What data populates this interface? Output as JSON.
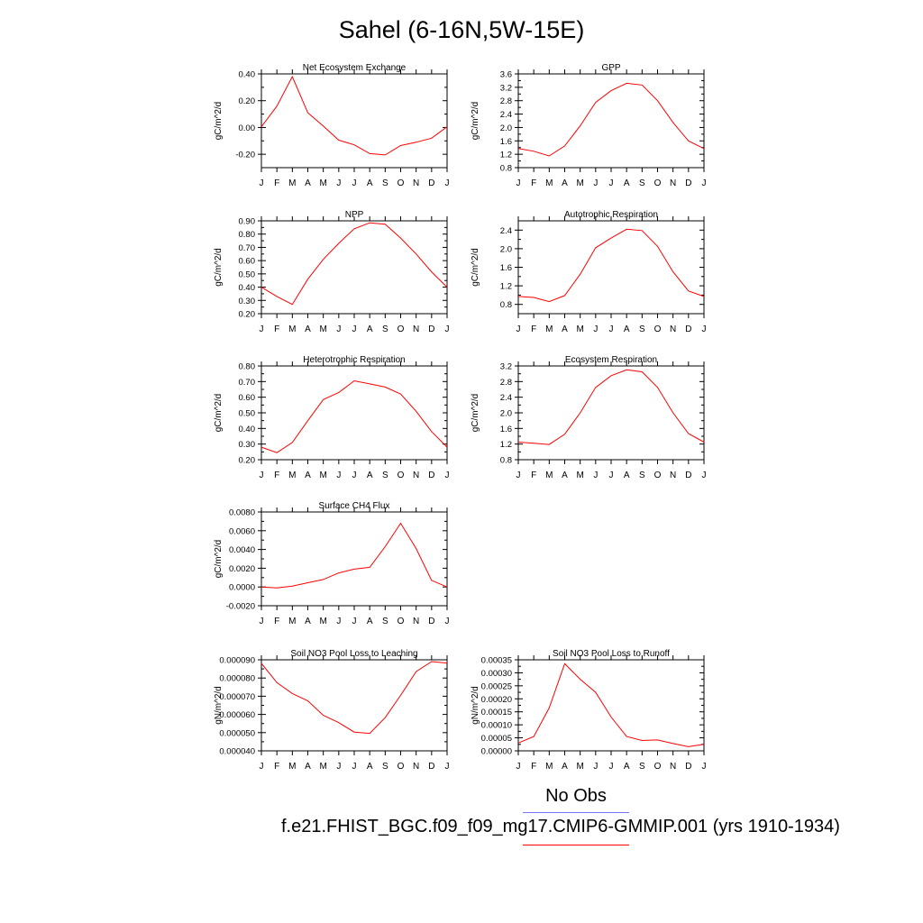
{
  "title": "Sahel (6-16N,5W-15E)",
  "legend": {
    "obs_label": "No Obs",
    "obs_color": "#7777ff",
    "model_label": "f.e21.FHIST_BGC.f09_f09_mg17.CMIP6-GMMIP.001 (yrs 1910-1934)",
    "model_color": "#ff0000"
  },
  "chart_data": [
    {
      "type": "line",
      "title": "Net Ecosystem Exchange",
      "ylabel": "gC/m^2/d",
      "x": [
        "J",
        "F",
        "M",
        "A",
        "M",
        "J",
        "J",
        "A",
        "S",
        "O",
        "N",
        "D",
        "J"
      ],
      "ylim": [
        -0.3,
        0.4
      ],
      "yticks": [
        "0.40",
        "0.20",
        "0.00",
        "-0.20"
      ],
      "ytick_values": [
        0.4,
        0.2,
        0.0,
        -0.2
      ],
      "series": [
        {
          "values": [
            0.005,
            0.16,
            0.38,
            0.11,
            0.01,
            -0.095,
            -0.13,
            -0.195,
            -0.205,
            -0.135,
            -0.11,
            -0.08,
            0.005
          ]
        }
      ]
    },
    {
      "type": "line",
      "title": "GPP",
      "ylabel": "gC/m^2/d",
      "x": [
        "J",
        "F",
        "M",
        "A",
        "M",
        "J",
        "J",
        "A",
        "S",
        "O",
        "N",
        "D",
        "J"
      ],
      "ylim": [
        0.8,
        3.6
      ],
      "yticks": [
        "3.6",
        "3.2",
        "2.8",
        "2.4",
        "2.0",
        "1.6",
        "1.2",
        "0.8"
      ],
      "ytick_values": [
        3.6,
        3.2,
        2.8,
        2.4,
        2.0,
        1.6,
        1.2,
        0.8
      ],
      "series": [
        {
          "values": [
            1.37,
            1.29,
            1.15,
            1.45,
            2.05,
            2.75,
            3.1,
            3.32,
            3.27,
            2.8,
            2.15,
            1.6,
            1.37
          ]
        }
      ]
    },
    {
      "type": "line",
      "title": "NPP",
      "ylabel": "gC/m^2/d",
      "x": [
        "J",
        "F",
        "M",
        "A",
        "M",
        "J",
        "J",
        "A",
        "S",
        "O",
        "N",
        "D",
        "J"
      ],
      "ylim": [
        0.2,
        0.9
      ],
      "yticks": [
        "0.90",
        "0.80",
        "0.70",
        "0.60",
        "0.50",
        "0.40",
        "0.30",
        "0.20"
      ],
      "ytick_values": [
        0.9,
        0.8,
        0.7,
        0.6,
        0.5,
        0.4,
        0.3,
        0.2
      ],
      "series": [
        {
          "values": [
            0.4,
            0.33,
            0.27,
            0.46,
            0.61,
            0.73,
            0.84,
            0.885,
            0.875,
            0.77,
            0.65,
            0.515,
            0.4
          ]
        }
      ]
    },
    {
      "type": "line",
      "title": "Autotrophic Respiration",
      "ylabel": "gC/m^2/d",
      "x": [
        "J",
        "F",
        "M",
        "A",
        "M",
        "J",
        "J",
        "A",
        "S",
        "O",
        "N",
        "D",
        "J"
      ],
      "ylim": [
        0.6,
        2.6
      ],
      "yticks": [
        "2.4",
        "2.0",
        "1.6",
        "1.2",
        "0.8"
      ],
      "ytick_values": [
        2.4,
        2.0,
        1.6,
        1.2,
        0.8
      ],
      "series": [
        {
          "values": [
            0.97,
            0.95,
            0.86,
            0.99,
            1.45,
            2.02,
            2.23,
            2.42,
            2.39,
            2.05,
            1.5,
            1.09,
            0.97
          ]
        }
      ]
    },
    {
      "type": "line",
      "title": "Heterotrophic Respiration",
      "ylabel": "gC/m^2/d",
      "x": [
        "J",
        "F",
        "M",
        "A",
        "M",
        "J",
        "J",
        "A",
        "S",
        "O",
        "N",
        "D",
        "J"
      ],
      "ylim": [
        0.2,
        0.8
      ],
      "yticks": [
        "0.80",
        "0.70",
        "0.60",
        "0.50",
        "0.40",
        "0.30",
        "0.20"
      ],
      "ytick_values": [
        0.8,
        0.7,
        0.6,
        0.5,
        0.4,
        0.3,
        0.2
      ],
      "series": [
        {
          "values": [
            0.28,
            0.245,
            0.31,
            0.45,
            0.585,
            0.63,
            0.705,
            0.685,
            0.665,
            0.62,
            0.51,
            0.38,
            0.28
          ]
        }
      ]
    },
    {
      "type": "line",
      "title": "Ecosystem Respiration",
      "ylabel": "gC/m^2/d",
      "x": [
        "J",
        "F",
        "M",
        "A",
        "M",
        "J",
        "J",
        "A",
        "S",
        "O",
        "N",
        "D",
        "J"
      ],
      "ylim": [
        0.8,
        3.2
      ],
      "yticks": [
        "3.2",
        "2.8",
        "2.4",
        "2.0",
        "1.6",
        "1.2",
        "0.8"
      ],
      "ytick_values": [
        3.2,
        2.8,
        2.4,
        2.0,
        1.6,
        1.2,
        0.8
      ],
      "series": [
        {
          "values": [
            1.25,
            1.22,
            1.19,
            1.45,
            2.0,
            2.65,
            2.95,
            3.1,
            3.05,
            2.65,
            2.0,
            1.47,
            1.25
          ]
        }
      ]
    },
    {
      "type": "line",
      "title": "Surface CH4 Flux",
      "ylabel": "gC/m^2/d",
      "x": [
        "J",
        "F",
        "M",
        "A",
        "M",
        "J",
        "J",
        "A",
        "S",
        "O",
        "N",
        "D",
        "J"
      ],
      "ylim": [
        -0.002,
        0.008
      ],
      "yticks": [
        "0.0080",
        "0.0060",
        "0.0040",
        "0.0020",
        "0.0000",
        "-0.0020"
      ],
      "ytick_values": [
        0.008,
        0.006,
        0.004,
        0.002,
        0.0,
        -0.002
      ],
      "series": [
        {
          "values": [
            0.0,
            -0.0001,
            0.0001,
            0.00045,
            0.0008,
            0.0015,
            0.0019,
            0.0021,
            0.0043,
            0.0068,
            0.0041,
            0.0007,
            0.0
          ]
        }
      ]
    },
    {
      "type": "line",
      "title": "Soil NO3 Pool Loss to Leaching",
      "ylabel": "gN/m^2/d",
      "x": [
        "J",
        "F",
        "M",
        "A",
        "M",
        "J",
        "J",
        "A",
        "S",
        "O",
        "N",
        "D",
        "J"
      ],
      "ylim": [
        4e-05,
        9e-05
      ],
      "yticks": [
        "0.000090",
        "0.000080",
        "0.000070",
        "0.000060",
        "0.000050",
        "0.000040"
      ],
      "ytick_values": [
        9e-05,
        8e-05,
        7e-05,
        6e-05,
        5e-05,
        4e-05
      ],
      "series": [
        {
          "values": [
            8.8e-05,
            7.75e-05,
            7.15e-05,
            6.75e-05,
            5.95e-05,
            5.55e-05,
            5.03e-05,
            4.96e-05,
            5.82e-05,
            7.05e-05,
            8.35e-05,
            8.9e-05,
            8.82e-05
          ]
        }
      ]
    },
    {
      "type": "line",
      "title": "Soil NO3 Pool Loss to Runoff",
      "ylabel": "gN/m^2/d",
      "x": [
        "J",
        "F",
        "M",
        "A",
        "M",
        "J",
        "J",
        "A",
        "S",
        "O",
        "N",
        "D",
        "J"
      ],
      "ylim": [
        0.0,
        0.00035
      ],
      "yticks": [
        "0.00035",
        "0.00030",
        "0.00025",
        "0.00020",
        "0.00015",
        "0.00010",
        "0.00005",
        "0.00000"
      ],
      "ytick_values": [
        0.00035,
        0.0003,
        0.00025,
        0.0002,
        0.00015,
        0.0001,
        5e-05,
        0.0
      ],
      "series": [
        {
          "values": [
            3e-05,
            5.5e-05,
            0.000165,
            0.000335,
            0.000275,
            0.000225,
            0.00013,
            5.5e-05,
            4e-05,
            4.2e-05,
            2.8e-05,
            1.6e-05,
            2.5e-05
          ]
        }
      ]
    }
  ]
}
